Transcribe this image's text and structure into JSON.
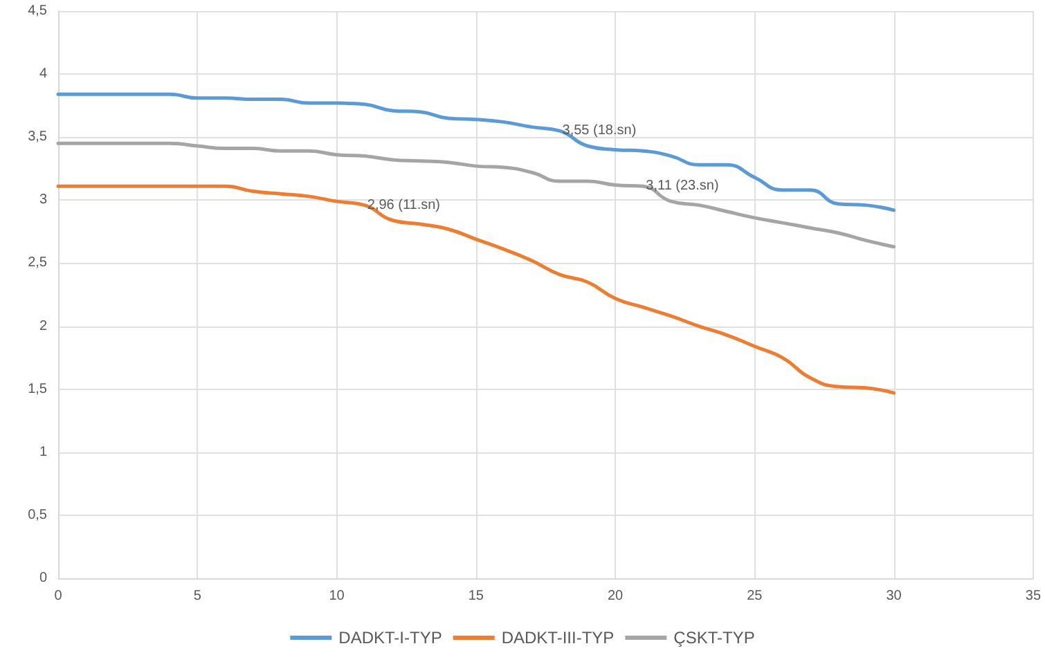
{
  "chart_data": {
    "type": "line",
    "x": [
      0,
      1,
      2,
      3,
      4,
      5,
      6,
      7,
      8,
      9,
      10,
      11,
      12,
      13,
      14,
      15,
      16,
      17,
      18,
      19,
      20,
      21,
      22,
      23,
      24,
      25,
      26,
      27,
      28,
      29,
      30
    ],
    "series": [
      {
        "name": "DADKT-I-TYP",
        "color": "#5b9bd5",
        "values": [
          3.84,
          3.84,
          3.84,
          3.84,
          3.84,
          3.81,
          3.81,
          3.8,
          3.8,
          3.77,
          3.77,
          3.76,
          3.71,
          3.7,
          3.65,
          3.64,
          3.62,
          3.58,
          3.55,
          3.43,
          3.4,
          3.39,
          3.35,
          3.28,
          3.28,
          3.18,
          3.08,
          3.08,
          2.97,
          2.96,
          2.92
        ]
      },
      {
        "name": "DADKT-III-TYP",
        "color": "#ed7d31",
        "values": [
          3.11,
          3.11,
          3.11,
          3.11,
          3.11,
          3.11,
          3.11,
          3.07,
          3.05,
          3.03,
          2.99,
          2.96,
          2.84,
          2.81,
          2.77,
          2.69,
          2.61,
          2.52,
          2.41,
          2.35,
          2.22,
          2.15,
          2.08,
          2.0,
          1.93,
          1.84,
          1.75,
          1.59,
          1.52,
          1.51,
          1.47
        ]
      },
      {
        "name": "ÇSKT-TYP",
        "color": "#a5a5a5",
        "values": [
          3.45,
          3.45,
          3.45,
          3.45,
          3.45,
          3.43,
          3.41,
          3.41,
          3.39,
          3.39,
          3.36,
          3.35,
          3.32,
          3.31,
          3.3,
          3.27,
          3.26,
          3.22,
          3.15,
          3.15,
          3.12,
          3.11,
          2.99,
          2.96,
          2.91,
          2.86,
          2.82,
          2.78,
          2.74,
          2.68,
          2.63
        ]
      }
    ],
    "xlim": [
      0,
      35
    ],
    "xticks": [
      0,
      5,
      10,
      15,
      20,
      25,
      30,
      35
    ],
    "ylim": [
      0,
      4.5
    ],
    "yticks": [
      0,
      {
        "value": 0.5,
        "label": "0,5"
      },
      1,
      {
        "value": 1.5,
        "label": "1,5"
      },
      2,
      {
        "value": 2.5,
        "label": "2,5"
      },
      3,
      {
        "value": 3.5,
        "label": "3,5"
      },
      4,
      {
        "value": 4.5,
        "label": "4,5"
      }
    ],
    "annotations": [
      {
        "text": "2,96 (11.sn)",
        "x": 11,
        "y": 2.96
      },
      {
        "text": "3,55 (18.sn)",
        "x": 18,
        "y": 3.55
      },
      {
        "text": "3,11 (23.sn)",
        "x": 21,
        "y": 3.11
      }
    ],
    "grid": true,
    "legend": "bottom",
    "marker": "none",
    "line_style": "solid"
  }
}
